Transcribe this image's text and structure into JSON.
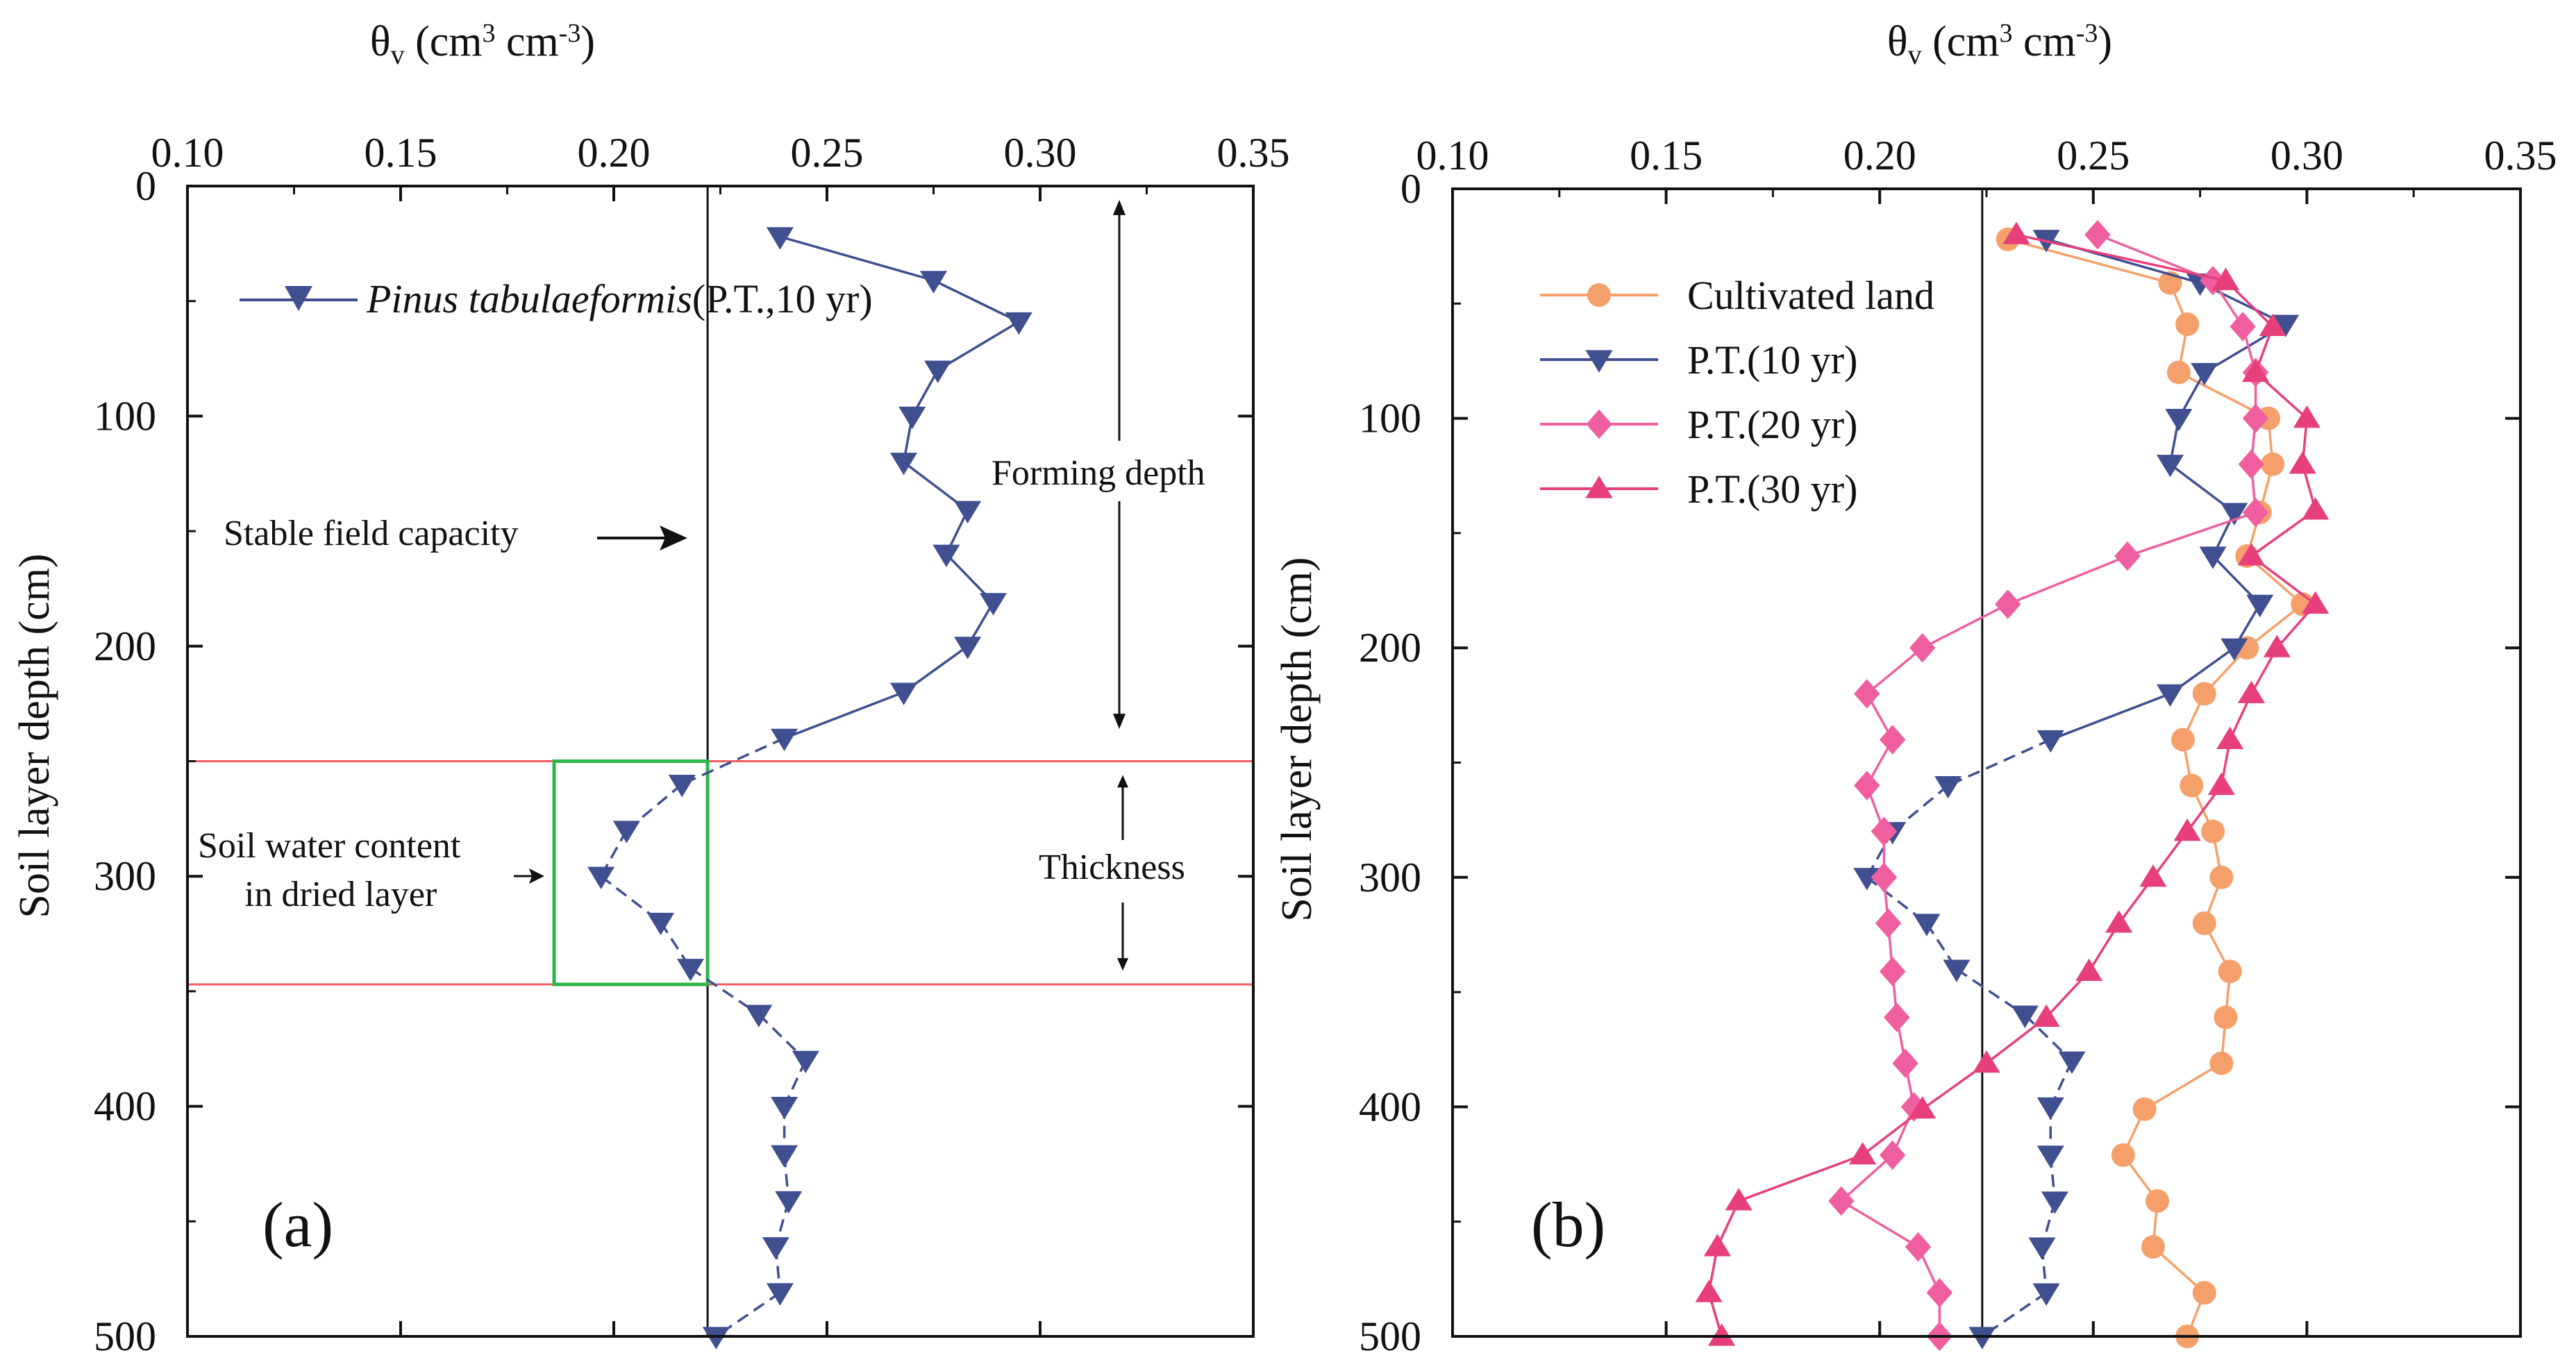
{
  "chart_data": [
    {
      "panel": "a",
      "type": "line",
      "panel_label": "(a)",
      "xlabel": "θv (cm³ cm⁻³)",
      "xlabel_main": "θ",
      "xlabel_sub": "v",
      "xlabel_unit_1": " (cm",
      "xlabel_sup_1": "3",
      "xlabel_unit_2": " cm",
      "xlabel_sup_2": "-3",
      "xlabel_unit_3": ")",
      "ylabel": "Soil layer depth (cm)",
      "x_axis_position": "top",
      "y_axis_inverted": true,
      "xlim": [
        0.1,
        0.35
      ],
      "ylim": [
        0,
        500
      ],
      "xticks": [
        "0.10",
        "0.15",
        "0.20",
        "0.25",
        "0.30",
        "0.35"
      ],
      "yticks": [
        "0",
        "100",
        "200",
        "300",
        "400",
        "500"
      ],
      "stable_field_capacity": 0.222,
      "dried_layer_top": 250,
      "dried_layer_bottom": 347,
      "dried_box_x": [
        0.186,
        0.222
      ],
      "annotations": {
        "stable_field_capacity": "Stable field capacity",
        "forming_depth": "Forming depth",
        "thickness": "Thickness",
        "dried_layer_line1": "Soil water content",
        "dried_layer_line2": "in dried layer"
      },
      "series": [
        {
          "name": "Pinus tabulaeformis(P.T.,10 yr)",
          "legend_italic": "Pinus tabulaeformis",
          "legend_rest": "(P.T.,10 yr)",
          "color": "#3f4f8f",
          "marker": "triangle-down",
          "dash": "solid-then-dashed",
          "points": [
            [
              0.239,
              22
            ],
            [
              0.275,
              41
            ],
            [
              0.295,
              59
            ],
            [
              0.276,
              80
            ],
            [
              0.27,
              100
            ],
            [
              0.268,
              120
            ],
            [
              0.283,
              141
            ],
            [
              0.278,
              160
            ],
            [
              0.289,
              181
            ],
            [
              0.283,
              200
            ],
            [
              0.268,
              220
            ],
            [
              0.24,
              240
            ],
            [
              0.216,
              260
            ],
            [
              0.203,
              280
            ],
            [
              0.197,
              300
            ],
            [
              0.211,
              320
            ],
            [
              0.218,
              340
            ],
            [
              0.234,
              360
            ],
            [
              0.245,
              380
            ],
            [
              0.24,
              400
            ],
            [
              0.24,
              421
            ],
            [
              0.241,
              441
            ],
            [
              0.238,
              461
            ],
            [
              0.239,
              481
            ],
            [
              0.224,
              500
            ]
          ]
        }
      ]
    },
    {
      "panel": "b",
      "type": "line",
      "panel_label": "(b)",
      "xlabel": "θv (cm³ cm⁻³)",
      "xlabel_main": "θ",
      "xlabel_sub": "v",
      "xlabel_unit_1": " (cm",
      "xlabel_sup_1": "3",
      "xlabel_unit_2": " cm",
      "xlabel_sup_2": "-3",
      "xlabel_unit_3": ")",
      "ylabel": "Soil layer depth (cm)",
      "x_axis_position": "top",
      "y_axis_inverted": true,
      "xlim": [
        0.1,
        0.35
      ],
      "ylim": [
        0,
        500
      ],
      "xticks": [
        "0.10",
        "0.15",
        "0.20",
        "0.25",
        "0.30",
        "0.35"
      ],
      "yticks": [
        "0",
        "100",
        "200",
        "300",
        "400",
        "500"
      ],
      "stable_field_capacity": 0.224,
      "series": [
        {
          "name": "Cultivated land",
          "color": "#f5a06a",
          "marker": "circle",
          "dash": "solid",
          "points": [
            [
              0.23,
              22
            ],
            [
              0.268,
              41
            ],
            [
              0.272,
              59
            ],
            [
              0.27,
              80
            ],
            [
              0.291,
              100
            ],
            [
              0.292,
              120
            ],
            [
              0.289,
              141
            ],
            [
              0.286,
              160
            ],
            [
              0.299,
              181
            ],
            [
              0.286,
              200
            ],
            [
              0.276,
              220
            ],
            [
              0.271,
              240
            ],
            [
              0.273,
              260
            ],
            [
              0.278,
              280
            ],
            [
              0.28,
              300
            ],
            [
              0.276,
              320
            ],
            [
              0.282,
              341
            ],
            [
              0.281,
              361
            ],
            [
              0.28,
              381
            ],
            [
              0.262,
              401
            ],
            [
              0.257,
              421
            ],
            [
              0.265,
              441
            ],
            [
              0.264,
              461
            ],
            [
              0.276,
              481
            ],
            [
              0.272,
              500
            ]
          ]
        },
        {
          "name": "P.T.(10 yr)",
          "color": "#3f4f8f",
          "marker": "triangle-down",
          "dash": "solid-then-dashed",
          "points": [
            [
              0.239,
              22
            ],
            [
              0.275,
              41
            ],
            [
              0.295,
              59
            ],
            [
              0.276,
              80
            ],
            [
              0.27,
              100
            ],
            [
              0.268,
              120
            ],
            [
              0.283,
              141
            ],
            [
              0.278,
              160
            ],
            [
              0.289,
              181
            ],
            [
              0.283,
              200
            ],
            [
              0.268,
              220
            ],
            [
              0.24,
              240
            ],
            [
              0.216,
              260
            ],
            [
              0.203,
              280
            ],
            [
              0.197,
              300
            ],
            [
              0.211,
              320
            ],
            [
              0.218,
              340
            ],
            [
              0.234,
              360
            ],
            [
              0.245,
              380
            ],
            [
              0.24,
              400
            ],
            [
              0.24,
              421
            ],
            [
              0.241,
              441
            ],
            [
              0.238,
              461
            ],
            [
              0.239,
              481
            ],
            [
              0.224,
              500
            ]
          ]
        },
        {
          "name": "P.T.(20 yr)",
          "color": "#ef5fa0",
          "marker": "diamond",
          "dash": "solid",
          "points": [
            [
              0.251,
              20
            ],
            [
              0.278,
              40
            ],
            [
              0.285,
              60
            ],
            [
              0.288,
              80
            ],
            [
              0.288,
              100
            ],
            [
              0.287,
              120
            ],
            [
              0.288,
              141
            ],
            [
              0.258,
              160
            ],
            [
              0.23,
              181
            ],
            [
              0.21,
              200
            ],
            [
              0.197,
              220
            ],
            [
              0.203,
              240
            ],
            [
              0.197,
              260
            ],
            [
              0.201,
              280
            ],
            [
              0.201,
              300
            ],
            [
              0.202,
              320
            ],
            [
              0.203,
              341
            ],
            [
              0.204,
              361
            ],
            [
              0.206,
              381
            ],
            [
              0.208,
              400
            ],
            [
              0.203,
              421
            ],
            [
              0.191,
              441
            ],
            [
              0.209,
              461
            ],
            [
              0.214,
              481
            ],
            [
              0.214,
              500
            ]
          ]
        },
        {
          "name": "P.T.(30 yr)",
          "color": "#e63f7c",
          "marker": "triangle-up",
          "dash": "solid",
          "points": [
            [
              0.232,
              20
            ],
            [
              0.281,
              40
            ],
            [
              0.292,
              60
            ],
            [
              0.288,
              80
            ],
            [
              0.3,
              100
            ],
            [
              0.299,
              120
            ],
            [
              0.302,
              140
            ],
            [
              0.287,
              160
            ],
            [
              0.302,
              181
            ],
            [
              0.293,
              200
            ],
            [
              0.287,
              220
            ],
            [
              0.282,
              240
            ],
            [
              0.28,
              260
            ],
            [
              0.272,
              280
            ],
            [
              0.264,
              300
            ],
            [
              0.256,
              320
            ],
            [
              0.249,
              341
            ],
            [
              0.239,
              361
            ],
            [
              0.225,
              381
            ],
            [
              0.21,
              401
            ],
            [
              0.196,
              421
            ],
            [
              0.167,
              441
            ],
            [
              0.162,
              461
            ],
            [
              0.16,
              481
            ],
            [
              0.163,
              500
            ]
          ]
        }
      ]
    }
  ]
}
